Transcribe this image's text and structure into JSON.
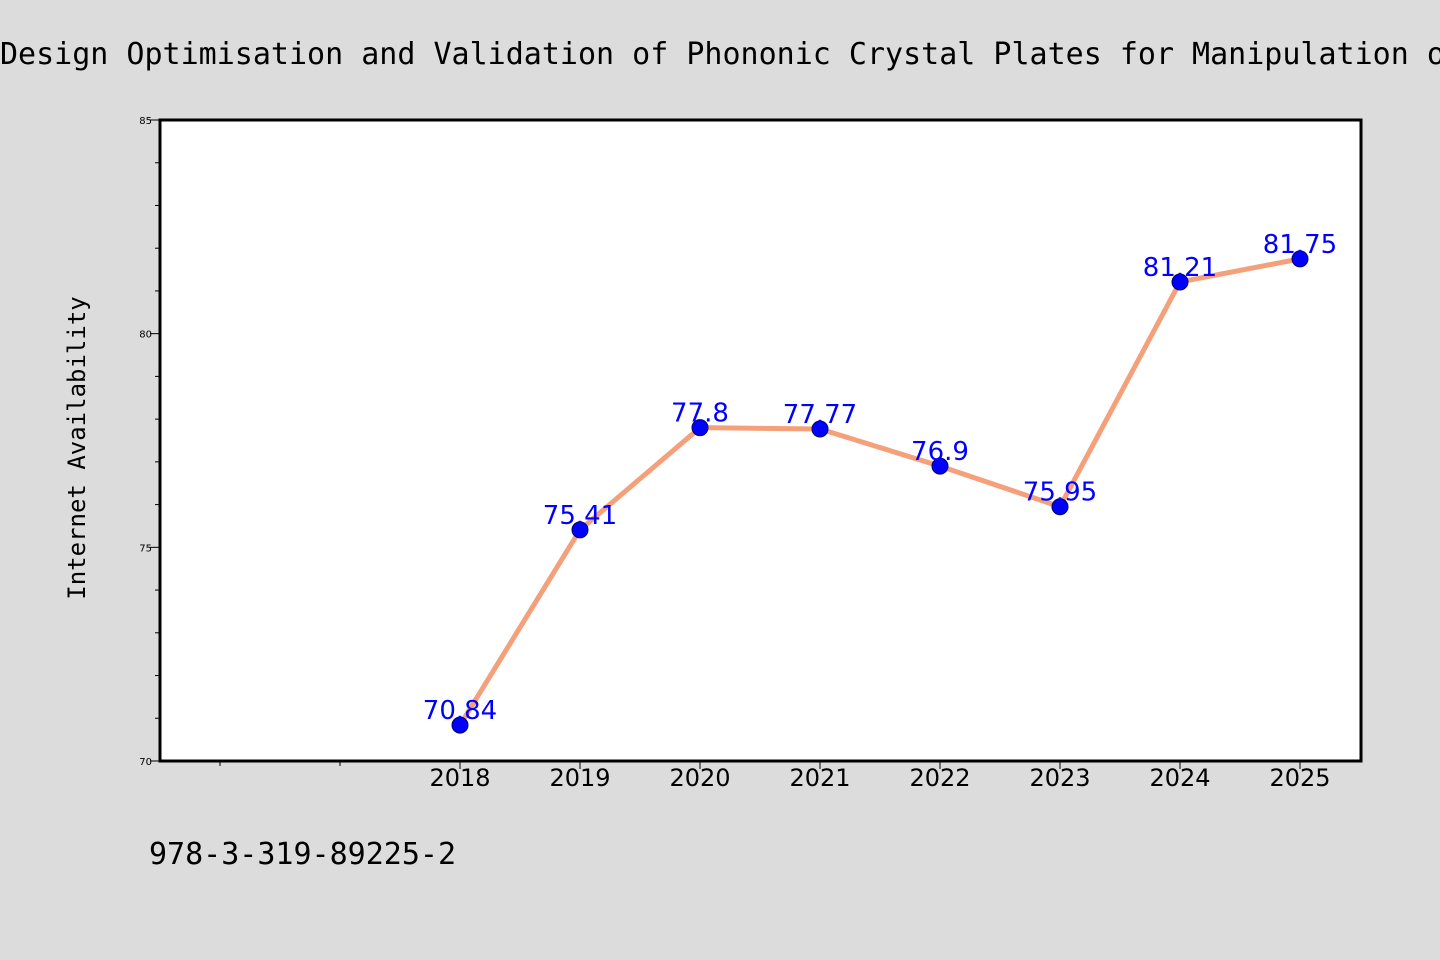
{
  "chart_data": {
    "type": "line",
    "title": "Design Optimisation and Validation of Phononic Crystal Plates for Manipulation o",
    "xlabel": "",
    "ylabel": "Internet Availability",
    "categories": [
      "2018",
      "2019",
      "2020",
      "2021",
      "2022",
      "2023",
      "2024",
      "2025"
    ],
    "series": [
      {
        "values": [
          70.84,
          75.41,
          77.8,
          77.77,
          76.9,
          75.95,
          81.21,
          81.75
        ],
        "labels": [
          "70.84",
          "75.41",
          "77.8",
          "77.77",
          "76.9",
          "75.95",
          "81.21",
          "81.75"
        ]
      }
    ],
    "ylim": [
      70,
      85
    ],
    "yticks": [
      "70",
      "75",
      "80",
      "85"
    ],
    "grid": false,
    "legend": "none",
    "colors": {
      "background": "#dcdcdc",
      "plot_area": "#ffffff",
      "line": "#f4a07a",
      "marker": "#0000ff",
      "data_label": "#0000ff"
    }
  },
  "footer": {
    "isbn": "978-3-319-89225-2"
  }
}
